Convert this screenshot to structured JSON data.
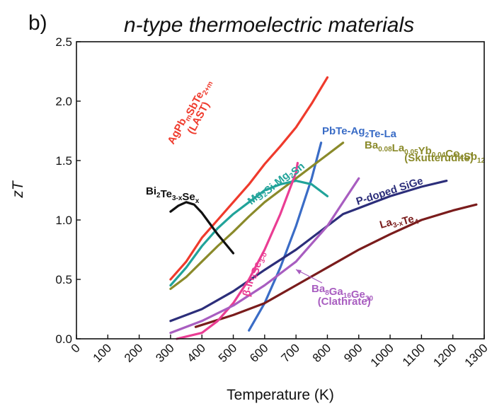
{
  "chart_data": {
    "type": "line",
    "panel_label": "b)",
    "title": "n-type thermoelectric materials",
    "xlabel": "Temperature (K)",
    "ylabel": "zT",
    "xlim": [
      0,
      1300
    ],
    "ylim": [
      0,
      2.5
    ],
    "xticks": [
      "0",
      "100",
      "200",
      "300",
      "400",
      "500",
      "600",
      "700",
      "800",
      "900",
      "1000",
      "1100",
      "1200",
      "1300"
    ],
    "yticks": [
      "0.0",
      "0.5",
      "1.0",
      "1.5",
      "2.0",
      "2.5"
    ],
    "series": [
      {
        "name": "AgPb<sub>m</sub>SbTe<sub>2+m</sub> (LAST)",
        "color": "#ef3a2c",
        "x": [
          300,
          350,
          400,
          450,
          500,
          550,
          600,
          650,
          700,
          750,
          800
        ],
        "y": [
          0.5,
          0.65,
          0.85,
          1.0,
          1.15,
          1.3,
          1.47,
          1.62,
          1.78,
          1.98,
          2.2
        ]
      },
      {
        "name": "PbTe-Ag<sub>2</sub>Te-La",
        "color": "#3a6cc6",
        "x": [
          550,
          600,
          650,
          700,
          750,
          780
        ],
        "y": [
          0.07,
          0.3,
          0.6,
          0.95,
          1.35,
          1.65
        ]
      },
      {
        "name": "Ba<sub>0.08</sub>La<sub>0.05</sub>Yb<sub>0.04</sub>Co<sub>4</sub>Sb<sub>12</sub> (Skutterudite)",
        "color": "#8a8a2a",
        "x": [
          300,
          350,
          400,
          450,
          500,
          550,
          600,
          650,
          700,
          750,
          800,
          850
        ],
        "y": [
          0.42,
          0.52,
          0.65,
          0.78,
          0.9,
          1.03,
          1.15,
          1.25,
          1.35,
          1.45,
          1.55,
          1.65
        ]
      },
      {
        "name": "Mg<sub>2</sub>Si-Mg<sub>2</sub>Sn",
        "color": "#21a39a",
        "x": [
          300,
          350,
          400,
          450,
          500,
          550,
          600,
          650,
          700,
          750,
          800
        ],
        "y": [
          0.45,
          0.6,
          0.78,
          0.93,
          1.05,
          1.15,
          1.25,
          1.3,
          1.33,
          1.3,
          1.2
        ]
      },
      {
        "name": "Bi<sub>2</sub>Te<sub>3-x</sub>Se<sub>x</sub>",
        "color": "#111111",
        "x": [
          300,
          325,
          350,
          375,
          400,
          425,
          450,
          475,
          500
        ],
        "y": [
          1.07,
          1.12,
          1.15,
          1.13,
          1.06,
          0.97,
          0.88,
          0.8,
          0.72
        ]
      },
      {
        "name": "P-doped SiGe",
        "color": "#2c2e7a",
        "x": [
          300,
          400,
          500,
          600,
          700,
          800,
          850,
          900,
          950,
          1000,
          1100,
          1180
        ],
        "y": [
          0.15,
          0.25,
          0.4,
          0.58,
          0.75,
          0.95,
          1.05,
          1.1,
          1.15,
          1.2,
          1.28,
          1.33
        ]
      },
      {
        "name": "La<sub>3-x</sub>Te<sub>4</sub>",
        "color": "#7a1c1c",
        "x": [
          380,
          500,
          600,
          700,
          800,
          900,
          1000,
          1100,
          1200,
          1275
        ],
        "y": [
          0.1,
          0.2,
          0.3,
          0.45,
          0.6,
          0.75,
          0.88,
          1.0,
          1.08,
          1.13
        ]
      },
      {
        "name": "β-In<sub>4</sub>Se<sub>3-δ</sub>",
        "color": "#ea3d93",
        "x": [
          320,
          400,
          450,
          500,
          550,
          600,
          650,
          700,
          705
        ],
        "y": [
          0.0,
          0.05,
          0.15,
          0.3,
          0.5,
          0.75,
          1.05,
          1.4,
          1.48
        ]
      },
      {
        "name": "Ba<sub>8</sub>Ga<sub>16</sub>Ge<sub>30</sub> (Clathrate)",
        "color": "#a85dc0",
        "x": [
          300,
          400,
          500,
          600,
          700,
          750,
          800,
          850,
          900
        ],
        "y": [
          0.05,
          0.15,
          0.28,
          0.45,
          0.65,
          0.8,
          0.95,
          1.15,
          1.35
        ]
      }
    ]
  }
}
